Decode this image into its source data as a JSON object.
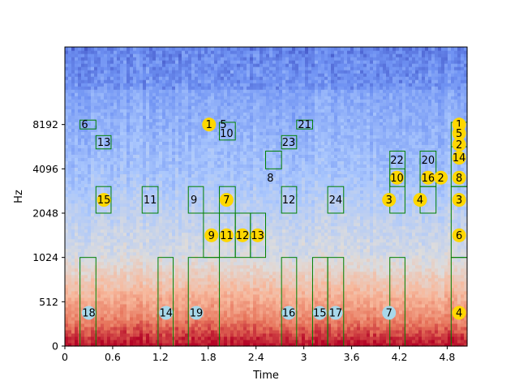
{
  "chart_data": {
    "type": "heatmap",
    "title": "",
    "xlabel": "Time",
    "ylabel": "Hz",
    "xlim": [
      0,
      5.05
    ],
    "ylim_tick_index": [
      0,
      6.75
    ],
    "x_ticks": [
      0,
      0.6,
      1.2,
      1.8,
      2.4,
      3.0,
      3.6,
      4.2,
      4.8
    ],
    "x_tick_labels": [
      "0",
      "0.6",
      "1.2",
      "1.8",
      "2.4",
      "3",
      "3.6",
      "4.2",
      "4.8"
    ],
    "y_tick_labels": [
      "0",
      "512",
      "1024",
      "2048",
      "4096",
      "8192"
    ],
    "box_color": "#008000",
    "colormap": [
      "#3b4cc0",
      "#6f92f3",
      "#aac7fd",
      "#dddcdc",
      "#f7b89c",
      "#e7745b",
      "#b40426"
    ],
    "boxes": [
      {
        "t0": 0.19,
        "t1": 0.39,
        "f0": 4.9,
        "f1": 5.1
      },
      {
        "t0": 0.39,
        "t1": 0.58,
        "f0": 4.45,
        "f1": 4.75
      },
      {
        "t0": 0.39,
        "t1": 0.58,
        "f0": 3.0,
        "f1": 3.6
      },
      {
        "t0": 0.19,
        "t1": 0.39,
        "f0": 0.0,
        "f1": 2.0
      },
      {
        "t0": 0.97,
        "t1": 1.17,
        "f0": 3.0,
        "f1": 3.6
      },
      {
        "t0": 1.17,
        "t1": 1.36,
        "f0": 0.0,
        "f1": 2.0
      },
      {
        "t0": 1.55,
        "t1": 1.74,
        "f0": 3.0,
        "f1": 3.6
      },
      {
        "t0": 1.55,
        "t1": 1.94,
        "f0": 0.0,
        "f1": 2.0
      },
      {
        "t0": 1.94,
        "t1": 2.14,
        "f0": 4.65,
        "f1": 5.05
      },
      {
        "t0": 1.94,
        "t1": 2.14,
        "f0": 3.0,
        "f1": 3.6
      },
      {
        "t0": 1.74,
        "t1": 1.94,
        "f0": 2.0,
        "f1": 3.0
      },
      {
        "t0": 1.94,
        "t1": 2.14,
        "f0": 2.0,
        "f1": 3.0
      },
      {
        "t0": 2.14,
        "t1": 2.33,
        "f0": 2.0,
        "f1": 3.0
      },
      {
        "t0": 2.33,
        "t1": 2.52,
        "f0": 2.0,
        "f1": 3.0
      },
      {
        "t0": 2.52,
        "t1": 2.72,
        "f0": 4.0,
        "f1": 4.4
      },
      {
        "t0": 2.72,
        "t1": 2.91,
        "f0": 4.45,
        "f1": 4.75
      },
      {
        "t0": 2.72,
        "t1": 2.91,
        "f0": 3.0,
        "f1": 3.6
      },
      {
        "t0": 2.72,
        "t1": 2.91,
        "f0": 0.0,
        "f1": 2.0
      },
      {
        "t0": 2.91,
        "t1": 3.11,
        "f0": 4.9,
        "f1": 5.1
      },
      {
        "t0": 3.11,
        "t1": 3.3,
        "f0": 0.0,
        "f1": 2.0
      },
      {
        "t0": 3.3,
        "t1": 3.5,
        "f0": 0.0,
        "f1": 2.0
      },
      {
        "t0": 3.3,
        "t1": 3.5,
        "f0": 3.0,
        "f1": 3.6
      },
      {
        "t0": 4.08,
        "t1": 4.27,
        "f0": 3.6,
        "f1": 4.4
      },
      {
        "t0": 4.08,
        "t1": 4.27,
        "f0": 3.0,
        "f1": 4.0
      },
      {
        "t0": 4.08,
        "t1": 4.27,
        "f0": 0.0,
        "f1": 2.0
      },
      {
        "t0": 4.46,
        "t1": 4.66,
        "f0": 3.6,
        "f1": 4.4
      },
      {
        "t0": 4.46,
        "t1": 4.66,
        "f0": 3.0,
        "f1": 3.6
      },
      {
        "t0": 4.85,
        "t1": 5.05,
        "f0": 4.5,
        "f1": 5.05
      },
      {
        "t0": 4.85,
        "t1": 5.05,
        "f0": 3.6,
        "f1": 4.5
      },
      {
        "t0": 4.85,
        "t1": 5.05,
        "f0": 2.0,
        "f1": 3.6
      },
      {
        "t0": 4.85,
        "t1": 5.05,
        "f0": 0.0,
        "f1": 2.0
      }
    ],
    "annotations": [
      {
        "label": "6",
        "t": 0.25,
        "f": 5.0,
        "color": "none"
      },
      {
        "label": "13",
        "t": 0.49,
        "f": 4.6,
        "color": "none"
      },
      {
        "label": "15",
        "t": 0.49,
        "f": 3.3,
        "color": "#ffd700"
      },
      {
        "label": "18",
        "t": 0.3,
        "f": 0.75,
        "color": "#a8d8ea"
      },
      {
        "label": "11",
        "t": 1.07,
        "f": 3.3,
        "color": "none"
      },
      {
        "label": "14",
        "t": 1.27,
        "f": 0.75,
        "color": "#a8d8ea"
      },
      {
        "label": "9",
        "t": 1.62,
        "f": 3.3,
        "color": "none"
      },
      {
        "label": "19",
        "t": 1.65,
        "f": 0.75,
        "color": "#a8d8ea"
      },
      {
        "label": "1",
        "t": 1.81,
        "f": 5.0,
        "color": "#ffd700"
      },
      {
        "label": "5",
        "t": 1.99,
        "f": 5.0,
        "color": "none"
      },
      {
        "label": "10",
        "t": 2.03,
        "f": 4.8,
        "color": "none"
      },
      {
        "label": "7",
        "t": 2.03,
        "f": 3.3,
        "color": "#ffd700"
      },
      {
        "label": "9",
        "t": 1.84,
        "f": 2.5,
        "color": "#ffd700"
      },
      {
        "label": "11",
        "t": 2.03,
        "f": 2.5,
        "color": "#ffd700"
      },
      {
        "label": "12",
        "t": 2.23,
        "f": 2.5,
        "color": "#ffd700"
      },
      {
        "label": "13",
        "t": 2.42,
        "f": 2.5,
        "color": "#ffd700"
      },
      {
        "label": "8",
        "t": 2.58,
        "f": 3.8,
        "color": "none"
      },
      {
        "label": "23",
        "t": 2.81,
        "f": 4.6,
        "color": "none"
      },
      {
        "label": "12",
        "t": 2.81,
        "f": 3.3,
        "color": "none"
      },
      {
        "label": "16",
        "t": 2.81,
        "f": 0.75,
        "color": "#a8d8ea"
      },
      {
        "label": "21",
        "t": 3.01,
        "f": 5.0,
        "color": "none"
      },
      {
        "label": "15",
        "t": 3.2,
        "f": 0.75,
        "color": "#a8d8ea"
      },
      {
        "label": "17",
        "t": 3.4,
        "f": 0.75,
        "color": "#a8d8ea"
      },
      {
        "label": "24",
        "t": 3.4,
        "f": 3.3,
        "color": "none"
      },
      {
        "label": "22",
        "t": 4.17,
        "f": 4.2,
        "color": "none"
      },
      {
        "label": "10",
        "t": 4.17,
        "f": 3.8,
        "color": "#ffd700"
      },
      {
        "label": "3",
        "t": 4.07,
        "f": 3.3,
        "color": "#ffd700"
      },
      {
        "label": "7",
        "t": 4.07,
        "f": 0.75,
        "color": "#a8d8ea"
      },
      {
        "label": "20",
        "t": 4.56,
        "f": 4.2,
        "color": "none"
      },
      {
        "label": "16",
        "t": 4.56,
        "f": 3.8,
        "color": "#ffd700"
      },
      {
        "label": "2",
        "t": 4.72,
        "f": 3.8,
        "color": "#ffd700"
      },
      {
        "label": "4",
        "t": 4.46,
        "f": 3.3,
        "color": "#ffd700"
      },
      {
        "label": "1",
        "t": 4.95,
        "f": 5.0,
        "color": "#ffd700"
      },
      {
        "label": "5",
        "t": 4.95,
        "f": 4.8,
        "color": "#ffd700"
      },
      {
        "label": "2",
        "t": 4.95,
        "f": 4.55,
        "color": "#ffd700"
      },
      {
        "label": "14",
        "t": 4.95,
        "f": 4.25,
        "color": "#ffd700"
      },
      {
        "label": "8",
        "t": 4.95,
        "f": 3.8,
        "color": "#ffd700"
      },
      {
        "label": "3",
        "t": 4.95,
        "f": 3.3,
        "color": "#ffd700"
      },
      {
        "label": "6",
        "t": 4.95,
        "f": 2.5,
        "color": "#ffd700"
      },
      {
        "label": "4",
        "t": 4.95,
        "f": 0.75,
        "color": "#ffd700"
      }
    ]
  }
}
